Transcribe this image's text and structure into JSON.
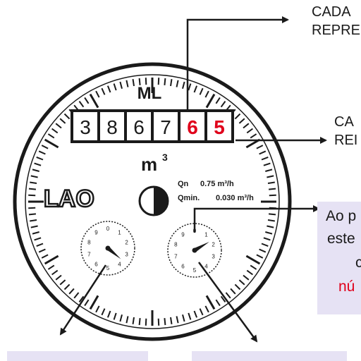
{
  "meter": {
    "brand_top": "ML",
    "digits": [
      "3",
      "8",
      "6",
      "7",
      "6",
      "5"
    ],
    "digit_red_from": 4,
    "unit": "m",
    "unit_exp": "3",
    "logo": "LAO",
    "qn_label": "Qn",
    "qn_value": "0.75 m³/h",
    "qmin_label": "Qmin.",
    "qmin_value": "0.030 m³/h",
    "dial_numbers": [
      "0",
      "1",
      "2",
      "3",
      "4",
      "5",
      "6",
      "7",
      "8",
      "9"
    ]
  },
  "callouts": {
    "top_line1": "CADA",
    "top_line2": "REPRE",
    "mid_line1": "CA",
    "mid_line2": "REI",
    "box_line1": "Ao p",
    "box_line2": "este",
    "box_line3": "c",
    "box_line4": "nú"
  },
  "colors": {
    "ink": "#1a1a1a",
    "red_digit": "#e0001b",
    "box_bg": "#e6e2f4"
  }
}
